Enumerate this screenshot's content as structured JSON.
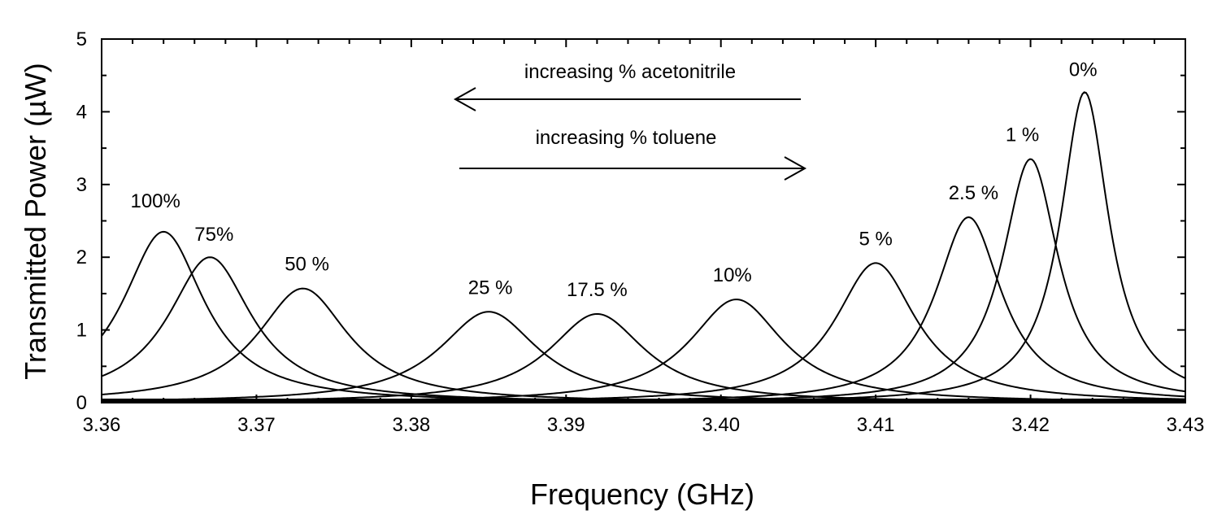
{
  "chart_data": {
    "type": "line",
    "xlabel": "Frequency (GHz)",
    "ylabel": "Transmitted Power (µW)",
    "xlim": [
      3.36,
      3.43
    ],
    "ylim": [
      0,
      5
    ],
    "x_ticks": [
      "3.36",
      "3.37",
      "3.38",
      "3.39",
      "3.40",
      "3.41",
      "3.42",
      "3.43"
    ],
    "y_ticks": [
      "0",
      "1",
      "2",
      "3",
      "4",
      "5"
    ],
    "grid": false,
    "series": [
      {
        "name": "100%",
        "peak_x": 3.364,
        "peak_y": 2.35,
        "half_width": 0.0032
      },
      {
        "name": "75%",
        "peak_x": 3.367,
        "peak_y": 2.0,
        "half_width": 0.0033
      },
      {
        "name": "50 %",
        "peak_x": 3.373,
        "peak_y": 1.57,
        "half_width": 0.0036
      },
      {
        "name": "25 %",
        "peak_x": 3.385,
        "peak_y": 1.25,
        "half_width": 0.0039
      },
      {
        "name": "17.5 %",
        "peak_x": 3.392,
        "peak_y": 1.22,
        "half_width": 0.0038
      },
      {
        "name": "10%",
        "peak_x": 3.401,
        "peak_y": 1.42,
        "half_width": 0.0037
      },
      {
        "name": "5 %",
        "peak_x": 3.41,
        "peak_y": 1.92,
        "half_width": 0.0032
      },
      {
        "name": "2.5 %",
        "peak_x": 3.416,
        "peak_y": 2.55,
        "half_width": 0.0026
      },
      {
        "name": "1 %",
        "peak_x": 3.42,
        "peak_y": 3.35,
        "half_width": 0.0022
      },
      {
        "name": "0%",
        "peak_x": 3.4235,
        "peak_y": 4.27,
        "half_width": 0.0019
      }
    ],
    "annotations": {
      "acetonitrile": "increasing % acetonitrile",
      "toluene": "increasing % toluene"
    }
  }
}
